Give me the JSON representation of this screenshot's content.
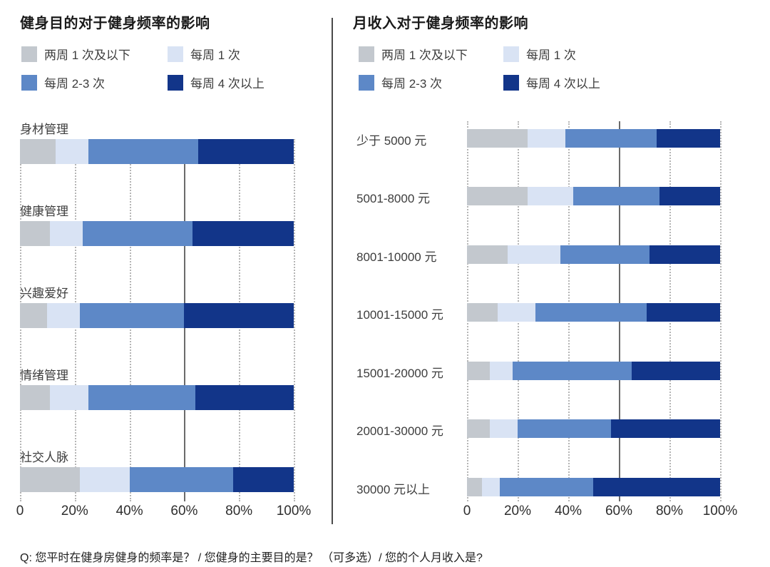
{
  "colors": {
    "freq_low": "#c3c8ce",
    "freq_1": "#d9e3f4",
    "freq_2_3": "#5d88c7",
    "freq_4plus": "#123589",
    "grid_dotted": "#b5b5b5",
    "grid_solid": "#6b6b6b",
    "divider": "#4a4a4a"
  },
  "footnote": {
    "text": "Q: 您平时在健身房健身的频率是？ / 您健身的主要目的是？ （可多选）/ 您的个人月收入是?"
  },
  "chart_data": [
    {
      "type": "bar",
      "orientation": "horizontal",
      "stacked": true,
      "unit": "%",
      "title": "健身目的对于健身频率的影响",
      "legend_position": "top",
      "grid": "vertical dotted, solid line at 60%",
      "xlim": [
        0,
        100
      ],
      "x_ticks": [
        "0",
        "20%",
        "40%",
        "60%",
        "80%",
        "100%"
      ],
      "categories": [
        "身材管理",
        "健康管理",
        "兴趣爱好",
        "情绪管理",
        "社交人脉"
      ],
      "series": [
        {
          "name": "两周 1 次及以下",
          "color_key": "freq_low",
          "values": [
            13,
            11,
            10,
            11,
            22
          ]
        },
        {
          "name": "每周 1 次",
          "color_key": "freq_1",
          "values": [
            12,
            12,
            12,
            14,
            18
          ]
        },
        {
          "name": "每周 2-3 次",
          "color_key": "freq_2_3",
          "values": [
            40,
            40,
            38,
            39,
            38
          ]
        },
        {
          "name": "每周 4 次以上",
          "color_key": "freq_4plus",
          "values": [
            35,
            37,
            40,
            36,
            22
          ]
        }
      ]
    },
    {
      "type": "bar",
      "orientation": "horizontal",
      "stacked": true,
      "unit": "%",
      "title": "月收入对于健身频率的影响",
      "legend_position": "top",
      "grid": "vertical dotted, solid line at 60%",
      "xlim": [
        0,
        100
      ],
      "x_ticks": [
        "0",
        "20%",
        "40%",
        "60%",
        "80%",
        "100%"
      ],
      "categories": [
        "少于 5000 元",
        "5001-8000 元",
        "8001-10000 元",
        "10001-15000 元",
        "15001-20000 元",
        "20001-30000 元",
        "30000 元以上"
      ],
      "series": [
        {
          "name": "两周 1 次及以下",
          "color_key": "freq_low",
          "values": [
            24,
            24,
            16,
            12,
            9,
            9,
            6
          ]
        },
        {
          "name": "每周 1 次",
          "color_key": "freq_1",
          "values": [
            15,
            18,
            21,
            15,
            9,
            11,
            7
          ]
        },
        {
          "name": "每周 2-3 次",
          "color_key": "freq_2_3",
          "values": [
            36,
            34,
            35,
            44,
            47,
            37,
            37
          ]
        },
        {
          "name": "每周 4 次以上",
          "color_key": "freq_4plus",
          "values": [
            25,
            24,
            28,
            29,
            35,
            43,
            50
          ]
        }
      ]
    }
  ]
}
